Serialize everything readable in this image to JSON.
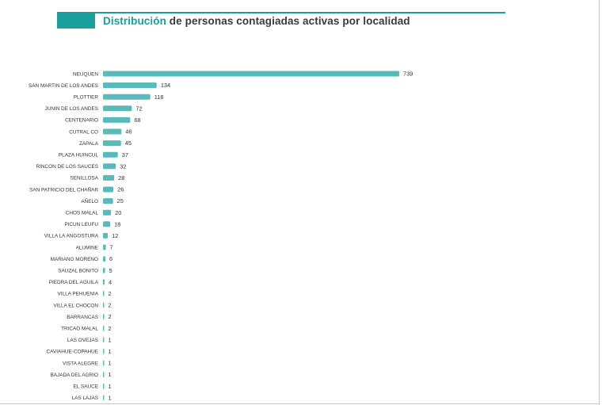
{
  "header": {
    "title_highlight": "Distribución",
    "title_rest": " de personas contagiadas activas por localidad"
  },
  "colors": {
    "accent": "#1a9e9c",
    "bar": "#5ab9bb",
    "title_text": "#3a3a3a",
    "label_text": "#333333"
  },
  "chart_data": {
    "type": "bar",
    "orientation": "horizontal",
    "categories": [
      "NEUQUEN",
      "SAN MARTIN DE LOS ANDES",
      "PLOTTIER",
      "JUNIN DE LOS ANDES",
      "CENTENARIO",
      "CUTRAL CO",
      "ZAPALA",
      "PLAZA HUINCUL",
      "RINCON DE LOS SAUCES",
      "SENILLOSA",
      "SAN PATRICIO DEL CHAÑAR",
      "AÑELO",
      "CHOS MALAL",
      "PICUN LEUFU",
      "VILLA LA ANGOSTURA",
      "ALUMINE",
      "MARIANO MORENO",
      "SAUZAL BONITO",
      "PIEDRA DEL AGUILA",
      "VILLA PEHUENIA",
      "VILLA EL CHOCON",
      "BARRANCAS",
      "TRICAO MALAL",
      "LAS OVEJAS",
      "CAVIAHUE-COPAHUE",
      "VISTA ALEGRE",
      "BAJADA DEL AGRIO",
      "EL SAUCE",
      "LAS LAJAS"
    ],
    "values": [
      739,
      134,
      118,
      72,
      68,
      46,
      45,
      37,
      32,
      28,
      26,
      25,
      20,
      18,
      12,
      7,
      6,
      5,
      4,
      2,
      2,
      2,
      2,
      1,
      1,
      1,
      1,
      1,
      1
    ],
    "title": "Distribución de personas contagiadas activas por localidad",
    "xlabel": "",
    "ylabel": "",
    "xlim": [
      0,
      739
    ],
    "grid": false,
    "data_labels": true
  }
}
